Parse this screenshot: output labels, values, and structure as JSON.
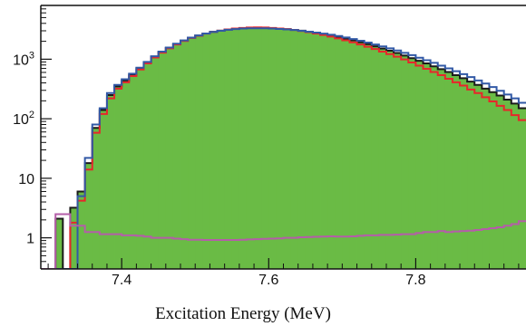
{
  "chart_data": {
    "type": "histogram",
    "title": "",
    "xlabel": "Excitation Energy (MeV)",
    "ylabel": "",
    "xlim": [
      7.29,
      7.95
    ],
    "ylim": [
      0.3,
      8000
    ],
    "yscale": "log",
    "grid": false,
    "bin_width": 0.01,
    "x_ticks": [
      {
        "value": 7.4,
        "label": "7.4"
      },
      {
        "value": 7.6,
        "label": "7.6"
      },
      {
        "value": 7.8,
        "label": "7.8"
      }
    ],
    "y_ticks": [
      {
        "value": 1,
        "label": "1"
      },
      {
        "value": 10,
        "label": "10"
      },
      {
        "value": 100,
        "label": "10",
        "sup": "2"
      },
      {
        "value": 1000,
        "label": "10",
        "sup": "3"
      }
    ],
    "bin_edges": [
      7.29,
      7.3,
      7.31,
      7.32,
      7.33,
      7.34,
      7.35,
      7.36,
      7.37,
      7.38,
      7.39,
      7.4,
      7.41,
      7.42,
      7.43,
      7.44,
      7.45,
      7.46,
      7.47,
      7.48,
      7.49,
      7.5,
      7.51,
      7.52,
      7.53,
      7.54,
      7.55,
      7.56,
      7.57,
      7.58,
      7.59,
      7.6,
      7.61,
      7.62,
      7.63,
      7.64,
      7.65,
      7.66,
      7.67,
      7.68,
      7.69,
      7.7,
      7.71,
      7.72,
      7.73,
      7.74,
      7.75,
      7.76,
      7.77,
      7.78,
      7.79,
      7.8,
      7.81,
      7.82,
      7.83,
      7.84,
      7.85,
      7.86,
      7.87,
      7.88,
      7.89,
      7.9,
      7.91,
      7.92,
      7.93,
      7.94,
      7.95
    ],
    "series": [
      {
        "color": "#6abb45",
        "style": "fill",
        "outline": "#1a1a1a",
        "values": [
          0.3,
          0.3,
          2.1,
          0.3,
          3.2,
          6,
          18,
          70,
          140,
          250,
          350,
          440,
          550,
          700,
          880,
          1100,
          1320,
          1550,
          1800,
          2050,
          2300,
          2500,
          2700,
          2880,
          3020,
          3150,
          3250,
          3320,
          3360,
          3380,
          3360,
          3320,
          3260,
          3190,
          3110,
          3010,
          2900,
          2780,
          2650,
          2510,
          2370,
          2230,
          2080,
          1930,
          1790,
          1650,
          1510,
          1390,
          1270,
          1150,
          1040,
          940,
          850,
          760,
          680,
          610,
          540,
          480,
          420,
          370,
          320,
          280,
          245,
          210,
          180,
          150
        ]
      },
      {
        "color": "#1a1a1a",
        "style": "step",
        "values": [
          0.3,
          0.3,
          2.1,
          0.3,
          3.2,
          6,
          18,
          70,
          140,
          250,
          350,
          440,
          550,
          700,
          880,
          1100,
          1320,
          1550,
          1800,
          2050,
          2300,
          2500,
          2700,
          2880,
          3020,
          3150,
          3250,
          3320,
          3360,
          3380,
          3360,
          3320,
          3260,
          3190,
          3110,
          3010,
          2900,
          2780,
          2650,
          2510,
          2370,
          2230,
          2080,
          1930,
          1790,
          1650,
          1510,
          1390,
          1270,
          1150,
          1040,
          940,
          850,
          760,
          680,
          610,
          540,
          480,
          420,
          370,
          320,
          280,
          245,
          210,
          180,
          150
        ]
      },
      {
        "color": "#e8262a",
        "style": "step",
        "values": [
          0.3,
          0.3,
          0.3,
          0.3,
          1.8,
          4.2,
          14,
          58,
          120,
          220,
          320,
          410,
          520,
          670,
          850,
          1070,
          1290,
          1520,
          1770,
          2020,
          2280,
          2480,
          2690,
          2870,
          3020,
          3160,
          3270,
          3350,
          3400,
          3420,
          3400,
          3350,
          3280,
          3200,
          3100,
          2980,
          2850,
          2700,
          2550,
          2400,
          2240,
          2080,
          1920,
          1770,
          1620,
          1480,
          1340,
          1220,
          1100,
          990,
          880,
          780,
          690,
          610,
          540,
          470,
          410,
          360,
          310,
          270,
          230,
          195,
          165,
          140,
          115,
          95
        ]
      },
      {
        "color": "#3259a6",
        "style": "step",
        "values": [
          0.3,
          0.3,
          0.3,
          0.3,
          0.3,
          5,
          22,
          80,
          150,
          270,
          370,
          460,
          570,
          720,
          900,
          1120,
          1340,
          1570,
          1820,
          2070,
          2310,
          2510,
          2700,
          2870,
          3000,
          3120,
          3210,
          3270,
          3300,
          3310,
          3300,
          3270,
          3220,
          3160,
          3090,
          3000,
          2900,
          2800,
          2690,
          2570,
          2450,
          2320,
          2180,
          2040,
          1900,
          1770,
          1640,
          1520,
          1400,
          1280,
          1170,
          1060,
          960,
          870,
          780,
          700,
          630,
          560,
          500,
          440,
          390,
          340,
          295,
          255,
          220,
          185
        ]
      },
      {
        "color": "#b45ea8",
        "style": "step",
        "values": [
          0.3,
          0.3,
          2.5,
          2.5,
          1.6,
          1.6,
          1.25,
          1.25,
          1.15,
          1.15,
          1.15,
          1.1,
          1.1,
          1.08,
          1.05,
          1.0,
          1.0,
          1.0,
          0.97,
          0.95,
          0.93,
          0.93,
          0.92,
          0.92,
          0.92,
          0.92,
          0.92,
          0.93,
          0.94,
          0.95,
          0.96,
          0.97,
          0.98,
          1.0,
          1.0,
          1.02,
          1.03,
          1.04,
          1.05,
          1.06,
          1.05,
          1.05,
          1.06,
          1.08,
          1.1,
          1.1,
          1.12,
          1.12,
          1.13,
          1.15,
          1.15,
          1.2,
          1.25,
          1.25,
          1.3,
          1.25,
          1.28,
          1.3,
          1.32,
          1.35,
          1.4,
          1.45,
          1.5,
          1.6,
          1.7,
          1.9
        ]
      }
    ]
  }
}
